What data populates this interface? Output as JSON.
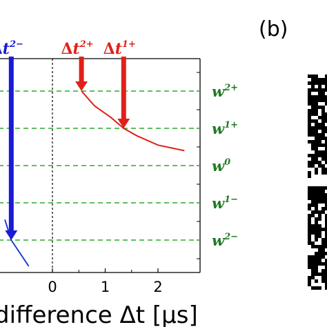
{
  "panel_label": "(b)",
  "chart_data": {
    "type": "line",
    "xlabel": "difference Δt [μs]",
    "x_ticks": [
      "0",
      "1",
      "2"
    ],
    "xlim": [
      -1,
      2.5
    ],
    "y_levels": [
      {
        "name": "w",
        "sup": "2+",
        "value": 2
      },
      {
        "name": "w",
        "sup": "1+",
        "value": 1
      },
      {
        "name": "w",
        "sup": "0",
        "value": 0
      },
      {
        "name": "w",
        "sup": "1−",
        "value": -1
      },
      {
        "name": "w",
        "sup": "2−",
        "value": -2
      }
    ],
    "ylim": [
      -2.7,
      3.7
    ],
    "zero_line": {
      "x": 0,
      "style": "dotted"
    },
    "series": [
      {
        "color": "#e0201a",
        "points": [
          [
            0.55,
            2.0
          ],
          [
            0.8,
            1.6
          ],
          [
            1.1,
            1.3
          ],
          [
            1.35,
            1.0
          ],
          [
            1.6,
            0.8
          ],
          [
            2.0,
            0.55
          ],
          [
            2.5,
            0.4
          ]
        ]
      },
      {
        "color": "#1a3fd6",
        "points": [
          [
            -0.9,
            -1.45
          ],
          [
            -0.78,
            -2.0
          ],
          [
            -0.45,
            -2.7
          ]
        ]
      }
    ],
    "annotations": [
      {
        "delta": "Δ",
        "var": "t",
        "sup": "2−",
        "color": "#1a1ad6",
        "x": -0.78,
        "y": -2.0
      },
      {
        "delta": "Δ",
        "var": "t",
        "sup": "2+",
        "color": "#e0201a",
        "x": 0.55,
        "y": 2.0
      },
      {
        "delta": "Δ",
        "var": "t",
        "sup": "1+",
        "color": "#e0201a",
        "x": 1.35,
        "y": 1.0
      }
    ],
    "colors": {
      "grid": "#2aa82a",
      "wlabel": "#1f7a1f"
    }
  }
}
